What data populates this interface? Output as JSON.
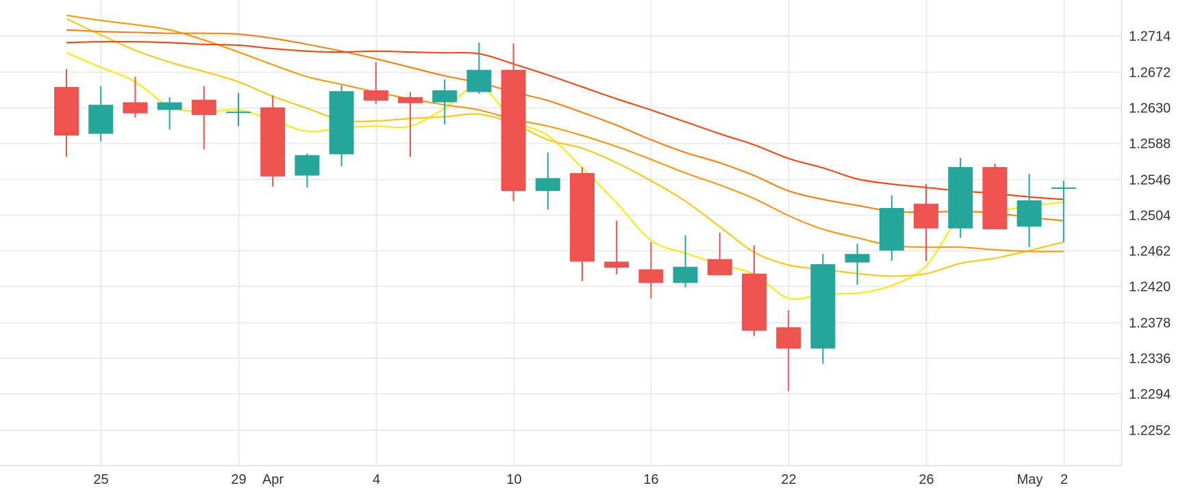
{
  "chart_data": {
    "type": "candlestick",
    "y_axis": {
      "position": "right",
      "ticks": [
        "1.2714",
        "1.2672",
        "1.2630",
        "1.2588",
        "1.2546",
        "1.2504",
        "1.2462",
        "1.2420",
        "1.2378",
        "1.2336",
        "1.2294",
        "1.2252"
      ],
      "range": [
        1.221,
        1.2756
      ]
    },
    "x_axis": {
      "ticks": [
        {
          "label": "25",
          "index": 1
        },
        {
          "label": "29",
          "index": 5
        },
        {
          "label": "Apr",
          "index": 6
        },
        {
          "label": "4",
          "index": 9
        },
        {
          "label": "10",
          "index": 13
        },
        {
          "label": "16",
          "index": 17
        },
        {
          "label": "22",
          "index": 21
        },
        {
          "label": "26",
          "index": 25
        },
        {
          "label": "May",
          "index": 28
        },
        {
          "label": "2",
          "index": 29
        }
      ]
    },
    "grid": true,
    "colors": {
      "up": "#26a69a",
      "down": "#ef5350",
      "grid": "#e6e6e6",
      "axis": "#dddddd"
    },
    "candles": [
      {
        "o": 1.2654,
        "h": 1.2675,
        "l": 1.2572,
        "c": 1.2597
      },
      {
        "o": 1.2599,
        "h": 1.2655,
        "l": 1.259,
        "c": 1.2633
      },
      {
        "o": 1.2636,
        "h": 1.2666,
        "l": 1.2618,
        "c": 1.2623
      },
      {
        "o": 1.2627,
        "h": 1.2642,
        "l": 1.2604,
        "c": 1.2636
      },
      {
        "o": 1.2639,
        "h": 1.2655,
        "l": 1.2581,
        "c": 1.2621
      },
      {
        "o": 1.2625,
        "h": 1.2647,
        "l": 1.2608,
        "c": 1.2625
      },
      {
        "o": 1.263,
        "h": 1.2644,
        "l": 1.2537,
        "c": 1.2549
      },
      {
        "o": 1.255,
        "h": 1.2576,
        "l": 1.2536,
        "c": 1.2574
      },
      {
        "o": 1.2575,
        "h": 1.2656,
        "l": 1.2561,
        "c": 1.2649
      },
      {
        "o": 1.265,
        "h": 1.2683,
        "l": 1.2634,
        "c": 1.2638
      },
      {
        "o": 1.2642,
        "h": 1.2648,
        "l": 1.2572,
        "c": 1.2635
      },
      {
        "o": 1.2636,
        "h": 1.2663,
        "l": 1.261,
        "c": 1.265
      },
      {
        "o": 1.2648,
        "h": 1.2706,
        "l": 1.2646,
        "c": 1.2674
      },
      {
        "o": 1.2674,
        "h": 1.2705,
        "l": 1.252,
        "c": 1.2532
      },
      {
        "o": 1.2532,
        "h": 1.2577,
        "l": 1.251,
        "c": 1.2547
      },
      {
        "o": 1.2553,
        "h": 1.256,
        "l": 1.2426,
        "c": 1.2449
      },
      {
        "o": 1.2449,
        "h": 1.2497,
        "l": 1.2434,
        "c": 1.2442
      },
      {
        "o": 1.244,
        "h": 1.2472,
        "l": 1.2406,
        "c": 1.2424
      },
      {
        "o": 1.2424,
        "h": 1.248,
        "l": 1.2419,
        "c": 1.2443
      },
      {
        "o": 1.2452,
        "h": 1.2483,
        "l": 1.2434,
        "c": 1.2433
      },
      {
        "o": 1.2435,
        "h": 1.2468,
        "l": 1.2362,
        "c": 1.2368
      },
      {
        "o": 1.2372,
        "h": 1.2392,
        "l": 1.2297,
        "c": 1.2347
      },
      {
        "o": 1.2347,
        "h": 1.2458,
        "l": 1.2329,
        "c": 1.2446
      },
      {
        "o": 1.2448,
        "h": 1.247,
        "l": 1.2422,
        "c": 1.2458
      },
      {
        "o": 1.2462,
        "h": 1.2527,
        "l": 1.245,
        "c": 1.2512
      },
      {
        "o": 1.2517,
        "h": 1.254,
        "l": 1.245,
        "c": 1.2488
      },
      {
        "o": 1.2488,
        "h": 1.2571,
        "l": 1.2477,
        "c": 1.256
      },
      {
        "o": 1.256,
        "h": 1.2564,
        "l": 1.2487,
        "c": 1.2487
      },
      {
        "o": 1.249,
        "h": 1.2552,
        "l": 1.2466,
        "c": 1.2521
      },
      {
        "o": 1.2536,
        "h": 1.2544,
        "l": 1.2472,
        "c": 1.2536
      }
    ],
    "moving_averages": [
      {
        "color": "#ffe600",
        "values": [
          [
            0,
            1.2694
          ],
          [
            1,
            1.2677
          ],
          [
            2,
            1.266
          ],
          [
            3,
            1.2631
          ],
          [
            4,
            1.2625
          ],
          [
            5,
            1.2627
          ],
          [
            6,
            1.2615
          ],
          [
            7,
            1.2602
          ],
          [
            8,
            1.2606
          ],
          [
            9,
            1.2608
          ],
          [
            10,
            1.2608
          ],
          [
            11,
            1.2629
          ],
          [
            12,
            1.2655
          ],
          [
            13,
            1.2615
          ],
          [
            14,
            1.2597
          ],
          [
            15,
            1.2559
          ],
          [
            16,
            1.2518
          ],
          [
            17,
            1.2474
          ],
          [
            18,
            1.2459
          ],
          [
            19,
            1.2446
          ],
          [
            20,
            1.2434
          ],
          [
            21,
            1.2406
          ],
          [
            22,
            1.2411
          ],
          [
            23,
            1.2412
          ],
          [
            24,
            1.2421
          ],
          [
            25,
            1.2444
          ],
          [
            26,
            1.2501
          ],
          [
            27,
            1.2508
          ],
          [
            28,
            1.2514
          ],
          [
            29,
            1.2519
          ]
        ]
      },
      {
        "color": "#ffc400",
        "values": [
          [
            0,
            1.2734
          ],
          [
            1,
            1.2715
          ],
          [
            2,
            1.2697
          ],
          [
            3,
            1.2683
          ],
          [
            4,
            1.2672
          ],
          [
            5,
            1.266
          ],
          [
            6,
            1.2643
          ],
          [
            7,
            1.2629
          ],
          [
            8,
            1.2615
          ],
          [
            9,
            1.2614
          ],
          [
            10,
            1.2617
          ],
          [
            11,
            1.2619
          ],
          [
            12,
            1.2622
          ],
          [
            13,
            1.2611
          ],
          [
            14,
            1.2592
          ],
          [
            15,
            1.2582
          ],
          [
            16,
            1.2565
          ],
          [
            17,
            1.2544
          ],
          [
            18,
            1.252
          ],
          [
            19,
            1.249
          ],
          [
            20,
            1.246
          ],
          [
            21,
            1.2445
          ],
          [
            22,
            1.244
          ],
          [
            23,
            1.2435
          ],
          [
            24,
            1.2432
          ],
          [
            25,
            1.2435
          ],
          [
            26,
            1.2447
          ],
          [
            27,
            1.2453
          ],
          [
            28,
            1.2462
          ],
          [
            29,
            1.2472
          ]
        ]
      },
      {
        "color": "#ff9100",
        "values": [
          [
            0,
            1.2738
          ],
          [
            1,
            1.2732
          ],
          [
            2,
            1.2727
          ],
          [
            3,
            1.2721
          ],
          [
            4,
            1.2709
          ],
          [
            5,
            1.2695
          ],
          [
            6,
            1.268
          ],
          [
            7,
            1.2666
          ],
          [
            8,
            1.2657
          ],
          [
            9,
            1.2648
          ],
          [
            10,
            1.264
          ],
          [
            11,
            1.2633
          ],
          [
            12,
            1.2627
          ],
          [
            13,
            1.2616
          ],
          [
            14,
            1.2608
          ],
          [
            15,
            1.2597
          ],
          [
            16,
            1.2584
          ],
          [
            17,
            1.2569
          ],
          [
            18,
            1.2553
          ],
          [
            19,
            1.2539
          ],
          [
            20,
            1.2523
          ],
          [
            21,
            1.2503
          ],
          [
            22,
            1.2487
          ],
          [
            23,
            1.2477
          ],
          [
            24,
            1.2468
          ],
          [
            25,
            1.2466
          ],
          [
            26,
            1.2466
          ],
          [
            27,
            1.2463
          ],
          [
            28,
            1.2461
          ],
          [
            29,
            1.2461
          ]
        ]
      },
      {
        "color": "#ff7a00",
        "values": [
          [
            0,
            1.2721
          ],
          [
            1,
            1.2719
          ],
          [
            2,
            1.2718
          ],
          [
            3,
            1.2717
          ],
          [
            4,
            1.2717
          ],
          [
            5,
            1.2716
          ],
          [
            6,
            1.2711
          ],
          [
            7,
            1.2704
          ],
          [
            8,
            1.2696
          ],
          [
            9,
            1.2687
          ],
          [
            10,
            1.2677
          ],
          [
            11,
            1.2667
          ],
          [
            12,
            1.2659
          ],
          [
            13,
            1.2648
          ],
          [
            14,
            1.2638
          ],
          [
            15,
            1.2624
          ],
          [
            16,
            1.2609
          ],
          [
            17,
            1.2592
          ],
          [
            18,
            1.2577
          ],
          [
            19,
            1.2565
          ],
          [
            20,
            1.255
          ],
          [
            21,
            1.2532
          ],
          [
            22,
            1.2522
          ],
          [
            23,
            1.2515
          ],
          [
            24,
            1.2508
          ],
          [
            25,
            1.2507
          ],
          [
            26,
            1.2508
          ],
          [
            27,
            1.2506
          ],
          [
            28,
            1.2501
          ],
          [
            29,
            1.2497
          ]
        ]
      },
      {
        "color": "#ff3d00",
        "values": [
          [
            0,
            1.2706
          ],
          [
            1,
            1.2707
          ],
          [
            2,
            1.2707
          ],
          [
            3,
            1.2706
          ],
          [
            4,
            1.2704
          ],
          [
            5,
            1.2703
          ],
          [
            6,
            1.2699
          ],
          [
            7,
            1.2696
          ],
          [
            8,
            1.2695
          ],
          [
            9,
            1.2696
          ],
          [
            10,
            1.2695
          ],
          [
            11,
            1.2694
          ],
          [
            12,
            1.2693
          ],
          [
            13,
            1.2681
          ],
          [
            14,
            1.2668
          ],
          [
            15,
            1.2654
          ],
          [
            16,
            1.264
          ],
          [
            17,
            1.2627
          ],
          [
            18,
            1.2613
          ],
          [
            19,
            1.2599
          ],
          [
            20,
            1.2586
          ],
          [
            21,
            1.257
          ],
          [
            22,
            1.2559
          ],
          [
            23,
            1.2546
          ],
          [
            24,
            1.254
          ],
          [
            25,
            1.2536
          ],
          [
            26,
            1.2532
          ],
          [
            27,
            1.2529
          ],
          [
            28,
            1.2525
          ],
          [
            29,
            1.2522
          ]
        ]
      }
    ]
  }
}
